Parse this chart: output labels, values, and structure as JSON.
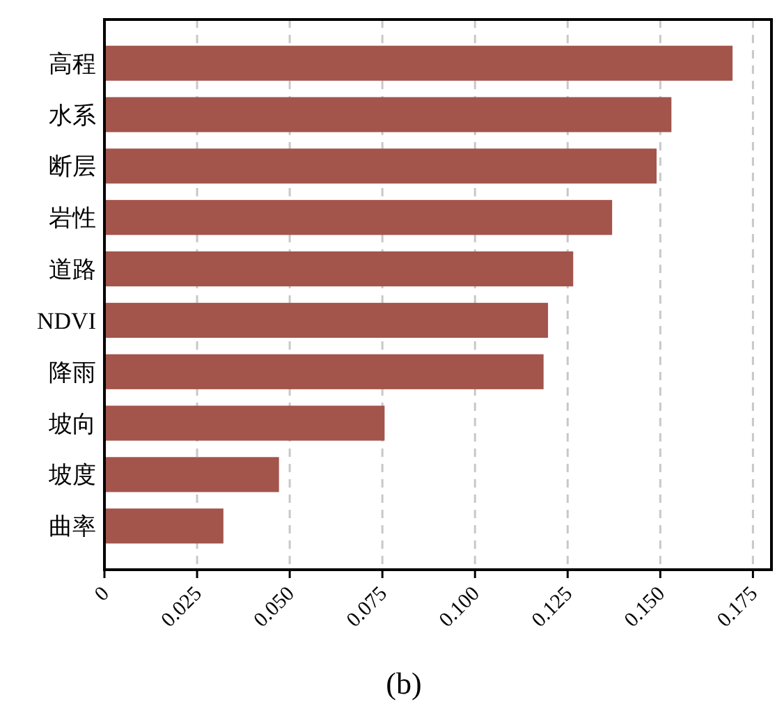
{
  "chart_data": {
    "type": "bar",
    "orientation": "horizontal",
    "title": "(b)",
    "categories": [
      "高程",
      "水系",
      "断层",
      "岩性",
      "道路",
      "NDVI",
      "降雨",
      "坡向",
      "坡度",
      "曲率"
    ],
    "values": [
      0.1695,
      0.153,
      0.149,
      0.137,
      0.1265,
      0.1197,
      0.1185,
      0.0756,
      0.0471,
      0.0321
    ],
    "color": "#a3544b",
    "xlim": [
      0,
      0.18
    ],
    "xticks": [
      0,
      {
        "value": 0.025,
        "label": "0.025"
      },
      {
        "value": 0.05,
        "label": "0.050"
      },
      {
        "value": 0.075,
        "label": "0.075"
      },
      {
        "value": 0.1,
        "label": "0.100"
      },
      {
        "value": 0.125,
        "label": "0.125"
      },
      {
        "value": 0.15,
        "label": "0.150"
      },
      {
        "value": 0.175,
        "label": "0.175"
      }
    ],
    "grid": "x"
  }
}
